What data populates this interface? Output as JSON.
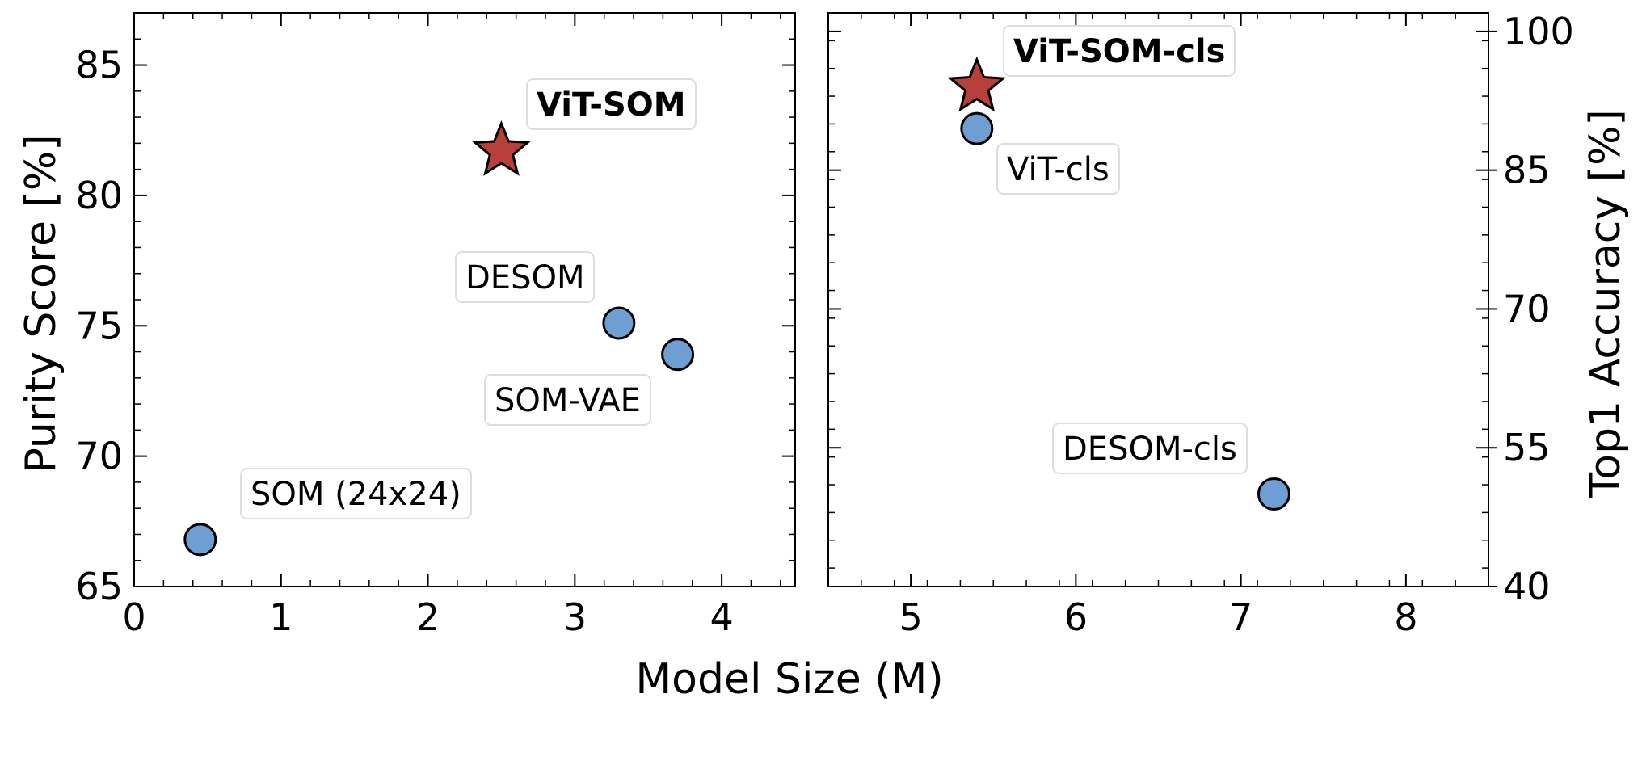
{
  "chart_data": [
    {
      "type": "scatter",
      "panel": "left",
      "xlabel": "Model Size (M)",
      "ylabel": "Purity Score [%]",
      "xlim": [
        0,
        4.5
      ],
      "ylim": [
        65,
        87
      ],
      "xticks": [
        0,
        1,
        2,
        3,
        4
      ],
      "yticks": [
        65,
        70,
        75,
        80,
        85
      ],
      "points": [
        {
          "name": "SOM (24x24)",
          "label": "SOM (24x24)",
          "x": 0.45,
          "y": 66.8,
          "marker": "circle",
          "bold": false
        },
        {
          "name": "DESOM",
          "label": "DESOM",
          "x": 3.3,
          "y": 75.1,
          "marker": "circle",
          "bold": false
        },
        {
          "name": "SOM-VAE",
          "label": "SOM-VAE",
          "x": 3.7,
          "y": 73.9,
          "marker": "circle",
          "bold": false
        },
        {
          "name": "ViT-SOM",
          "label": "ViT-SOM",
          "x": 2.5,
          "y": 81.7,
          "marker": "star",
          "bold": true
        }
      ]
    },
    {
      "type": "scatter",
      "panel": "right",
      "xlabel": "Model Size (M)",
      "ylabel": "Top1 Accuracy [%]",
      "xlim": [
        4.5,
        8.5
      ],
      "ylim": [
        40,
        102
      ],
      "xticks": [
        5,
        6,
        7,
        8
      ],
      "yticks": [
        40,
        55,
        70,
        85,
        100
      ],
      "points": [
        {
          "name": "ViT-cls",
          "label": "ViT-cls",
          "x": 5.4,
          "y": 89.5,
          "marker": "circle",
          "bold": false
        },
        {
          "name": "DESOM-cls",
          "label": "DESOM-cls",
          "x": 7.2,
          "y": 50.0,
          "marker": "circle",
          "bold": false
        },
        {
          "name": "ViT-SOM-cls",
          "label": "ViT-SOM-cls",
          "x": 5.4,
          "y": 94.0,
          "marker": "star",
          "bold": true
        }
      ]
    }
  ],
  "colors": {
    "circle_fill": "#6f9fd2",
    "star_fill": "#b9403a",
    "edge": "#000000"
  }
}
